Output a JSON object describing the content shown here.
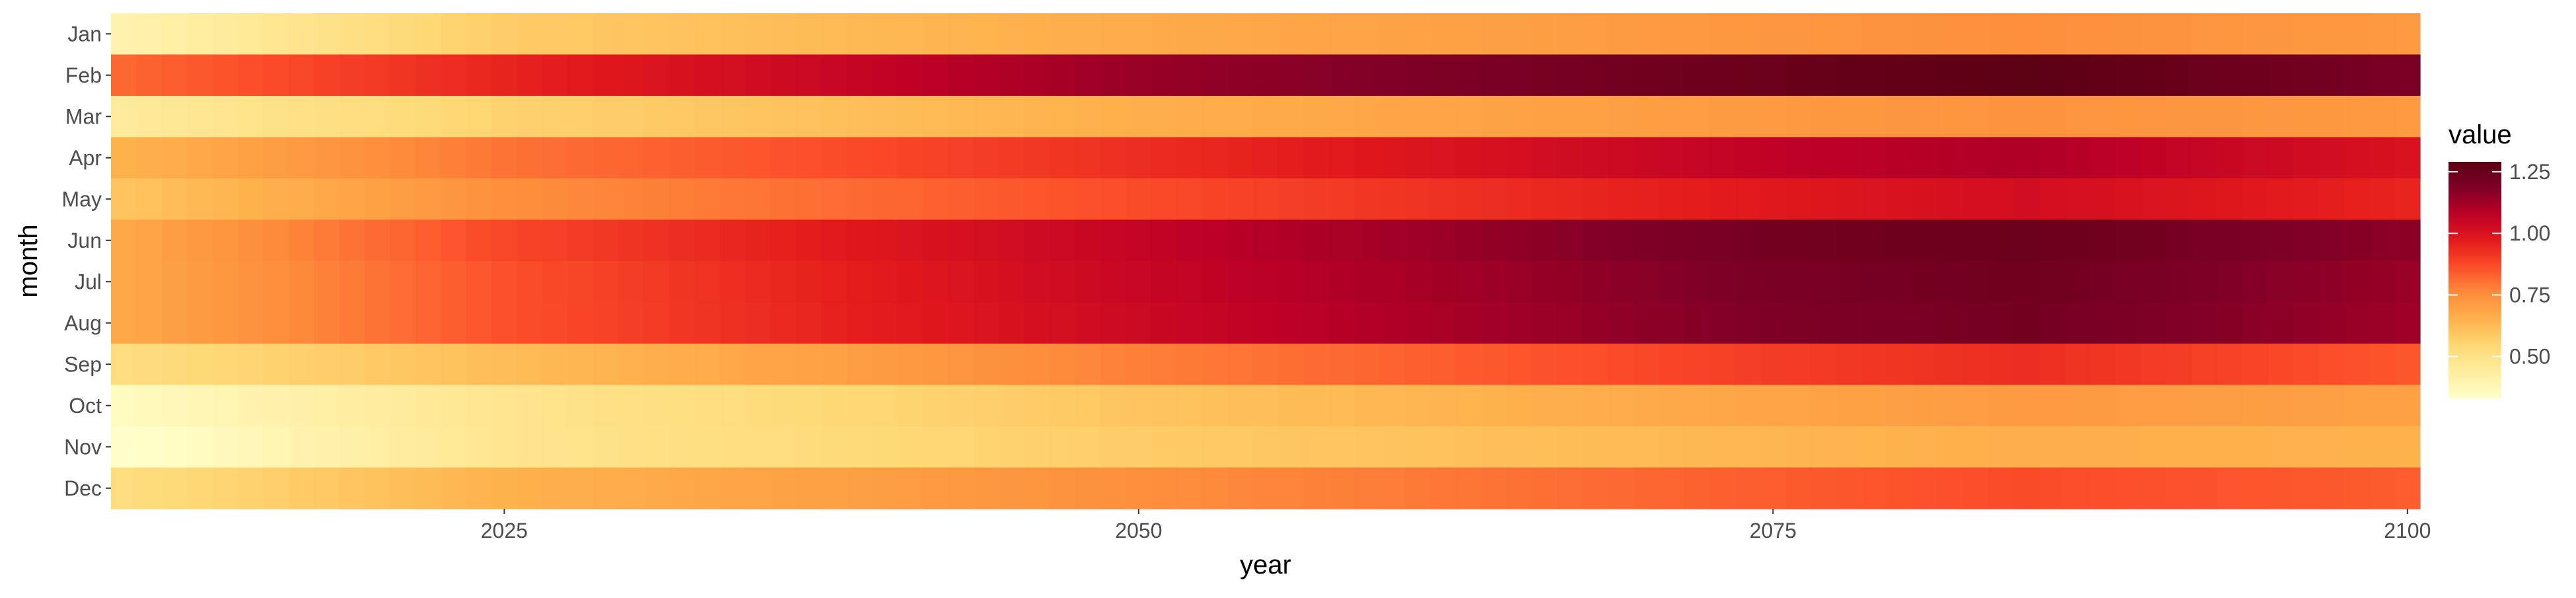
{
  "chart_data": {
    "type": "heatmap",
    "xlabel": "year",
    "ylabel": "month",
    "x_range": [
      2009.5,
      2100.5
    ],
    "x_ticks": [
      2025,
      2050,
      2075,
      2100
    ],
    "x_tick_labels": [
      "2025",
      "2050",
      "2075",
      "2100"
    ],
    "months": [
      "Jan",
      "Feb",
      "Mar",
      "Apr",
      "May",
      "Jun",
      "Jul",
      "Aug",
      "Sep",
      "Oct",
      "Nov",
      "Dec"
    ],
    "years_start": 2010,
    "years_end": 2100,
    "value_keyframes": {
      "years": [
        2010,
        2025,
        2050,
        2075,
        2085,
        2100
      ],
      "Jan": [
        0.4,
        0.58,
        0.67,
        0.73,
        0.75,
        0.72
      ],
      "Feb": [
        0.82,
        0.95,
        1.14,
        1.25,
        1.29,
        1.2
      ],
      "Mar": [
        0.45,
        0.56,
        0.66,
        0.72,
        0.74,
        0.72
      ],
      "Apr": [
        0.65,
        0.8,
        0.93,
        1.07,
        1.1,
        1.0
      ],
      "May": [
        0.6,
        0.75,
        0.87,
        0.98,
        1.02,
        0.95
      ],
      "Jun": [
        0.68,
        0.88,
        1.06,
        1.22,
        1.25,
        1.16
      ],
      "Jul": [
        0.68,
        0.86,
        1.05,
        1.2,
        1.23,
        1.14
      ],
      "Aug": [
        0.68,
        0.86,
        1.04,
        1.19,
        1.22,
        1.13
      ],
      "Sep": [
        0.52,
        0.62,
        0.78,
        0.9,
        0.93,
        0.85
      ],
      "Oct": [
        0.36,
        0.48,
        0.6,
        0.69,
        0.72,
        0.7
      ],
      "Nov": [
        0.33,
        0.48,
        0.58,
        0.64,
        0.66,
        0.65
      ],
      "Dec": [
        0.52,
        0.65,
        0.75,
        0.84,
        0.87,
        0.84
      ]
    },
    "color_scale": {
      "name": "YlOrRd",
      "domain": [
        0.33,
        1.29
      ],
      "colors": [
        "#ffffcc",
        "#ffeda0",
        "#fed976",
        "#feb24c",
        "#fd8d3c",
        "#fc4e2a",
        "#e31a1c",
        "#bd0026",
        "#800026",
        "#5c0014"
      ]
    },
    "legend": {
      "title": "value",
      "placement": "right",
      "ticks": [
        0.5,
        0.75,
        1.0,
        1.25
      ],
      "tick_labels": [
        "0.50",
        "0.75",
        "1.00",
        "1.25"
      ]
    },
    "grid": false
  }
}
